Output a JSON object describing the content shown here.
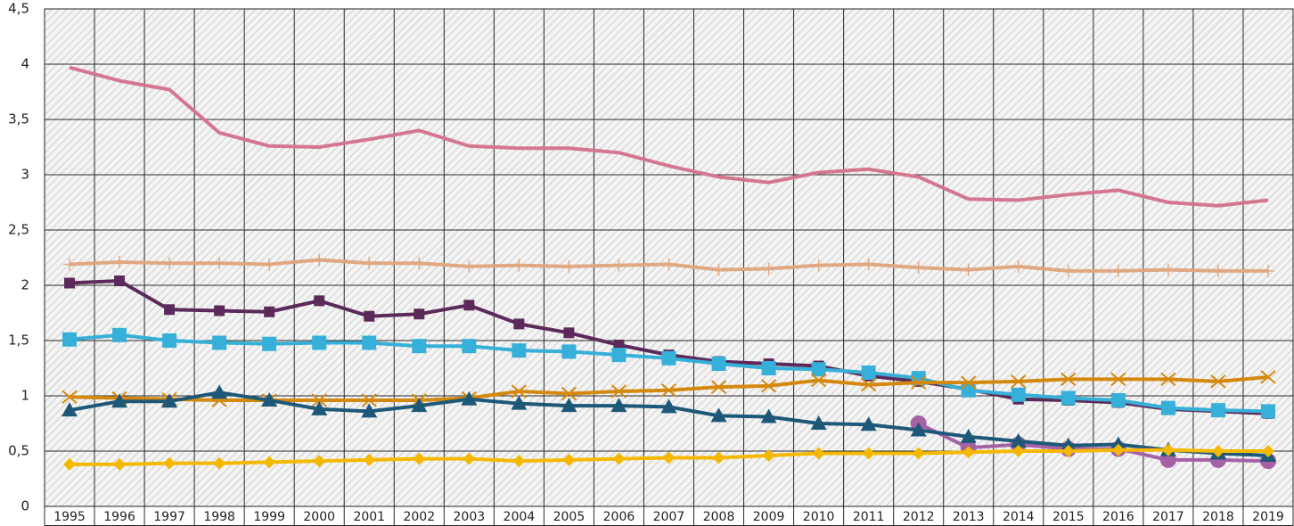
{
  "chart_data": {
    "type": "line",
    "categories": [
      "1995",
      "1996",
      "1997",
      "1998",
      "1999",
      "2000",
      "2001",
      "2002",
      "2003",
      "2004",
      "2005",
      "2006",
      "2007",
      "2008",
      "2009",
      "2010",
      "2011",
      "2012",
      "2013",
      "2014",
      "2015",
      "2016",
      "2017",
      "2018",
      "2019"
    ],
    "ylim": [
      0,
      4.5
    ],
    "yticks": [
      0,
      {
        "value": 0.5,
        "label": "0,5"
      },
      1,
      {
        "value": 1.5,
        "label": "1,5"
      },
      2,
      {
        "value": 2.5,
        "label": "2,5"
      },
      3,
      {
        "value": 3.5,
        "label": "3,5"
      },
      4,
      {
        "value": 4.5,
        "label": "4,5"
      }
    ],
    "grid": true,
    "series": [
      {
        "color": "#d4768f",
        "marker": "none",
        "values": [
          3.97,
          3.85,
          3.77,
          3.38,
          3.26,
          3.25,
          3.32,
          3.4,
          3.26,
          3.24,
          3.24,
          3.2,
          3.08,
          2.98,
          2.93,
          3.02,
          3.05,
          2.98,
          2.78,
          2.77,
          2.82,
          2.86,
          2.75,
          2.72,
          2.77
        ]
      },
      {
        "color": "#e0a882",
        "marker": "plus",
        "values": [
          2.19,
          2.21,
          2.2,
          2.2,
          2.19,
          2.23,
          2.2,
          2.2,
          2.17,
          2.18,
          2.17,
          2.18,
          2.19,
          2.14,
          2.15,
          2.18,
          2.19,
          2.16,
          2.14,
          2.17,
          2.13,
          2.13,
          2.14,
          2.13,
          2.13
        ]
      },
      {
        "color": "#a561a6",
        "marker": "circle",
        "values": [
          null,
          null,
          null,
          null,
          null,
          null,
          null,
          null,
          null,
          null,
          null,
          null,
          null,
          null,
          null,
          null,
          null,
          0.75,
          0.53,
          0.56,
          0.52,
          0.52,
          0.42,
          0.42,
          0.41
        ]
      },
      {
        "color": "#5c2a5a",
        "marker": "square-small",
        "values": [
          2.02,
          2.04,
          1.78,
          1.77,
          1.76,
          1.86,
          1.72,
          1.74,
          1.82,
          1.65,
          1.57,
          1.46,
          1.37,
          1.31,
          1.29,
          1.27,
          1.18,
          1.13,
          1.06,
          0.97,
          0.96,
          0.94,
          0.88,
          0.86,
          0.84
        ]
      },
      {
        "color": "#36b0d8",
        "marker": "square",
        "values": [
          1.51,
          1.55,
          1.5,
          1.48,
          1.47,
          1.48,
          1.48,
          1.45,
          1.45,
          1.41,
          1.4,
          1.37,
          1.34,
          1.29,
          1.25,
          1.24,
          1.21,
          1.16,
          1.05,
          1.01,
          0.98,
          0.96,
          0.89,
          0.87,
          0.86
        ]
      },
      {
        "color": "#d4880e",
        "marker": "x",
        "values": [
          0.99,
          0.98,
          0.97,
          0.96,
          0.96,
          0.96,
          0.96,
          0.96,
          0.98,
          1.04,
          1.02,
          1.04,
          1.05,
          1.08,
          1.09,
          1.14,
          1.1,
          1.12,
          1.12,
          1.13,
          1.15,
          1.15,
          1.15,
          1.13,
          1.17
        ]
      },
      {
        "color": "#1e5878",
        "marker": "triangle",
        "values": [
          0.87,
          0.95,
          0.95,
          1.03,
          0.96,
          0.88,
          0.86,
          0.91,
          0.97,
          0.93,
          0.91,
          0.91,
          0.9,
          0.82,
          0.81,
          0.75,
          0.74,
          0.69,
          0.63,
          0.59,
          0.55,
          0.56,
          0.51,
          0.48,
          0.46
        ]
      },
      {
        "color": "#f5b800",
        "marker": "diamond",
        "values": [
          0.38,
          0.38,
          0.39,
          0.39,
          0.4,
          0.41,
          0.42,
          0.43,
          0.43,
          0.41,
          0.42,
          0.43,
          0.44,
          0.44,
          0.46,
          0.48,
          0.48,
          0.48,
          0.49,
          0.5,
          0.5,
          0.51,
          0.51,
          0.5,
          0.5
        ]
      }
    ]
  }
}
